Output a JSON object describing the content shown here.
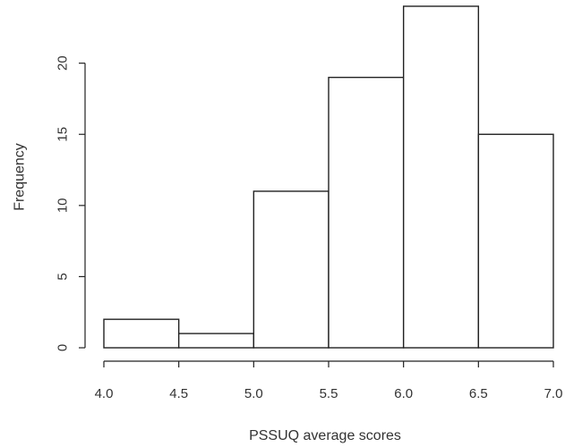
{
  "chart_data": {
    "type": "bar",
    "title": "",
    "xlabel": "PSSUQ average scores",
    "ylabel": "Frequency",
    "bins": [
      {
        "start": 4.0,
        "end": 4.5,
        "count": 2
      },
      {
        "start": 4.5,
        "end": 5.0,
        "count": 1
      },
      {
        "start": 5.0,
        "end": 5.5,
        "count": 11
      },
      {
        "start": 5.5,
        "end": 6.0,
        "count": 19
      },
      {
        "start": 6.0,
        "end": 6.5,
        "count": 24
      },
      {
        "start": 6.5,
        "end": 7.0,
        "count": 15
      }
    ],
    "xlim": [
      4.0,
      7.0
    ],
    "ylim": [
      0,
      24
    ],
    "x_ticks": [
      "4.0",
      "4.5",
      "5.0",
      "5.5",
      "6.0",
      "6.5",
      "7.0"
    ],
    "y_ticks": [
      "0",
      "5",
      "10",
      "15",
      "20"
    ],
    "grid": false,
    "legend": "none",
    "colors": {
      "bar_fill": "#ffffff",
      "bar_stroke": "#222222",
      "text": "#333333"
    }
  }
}
